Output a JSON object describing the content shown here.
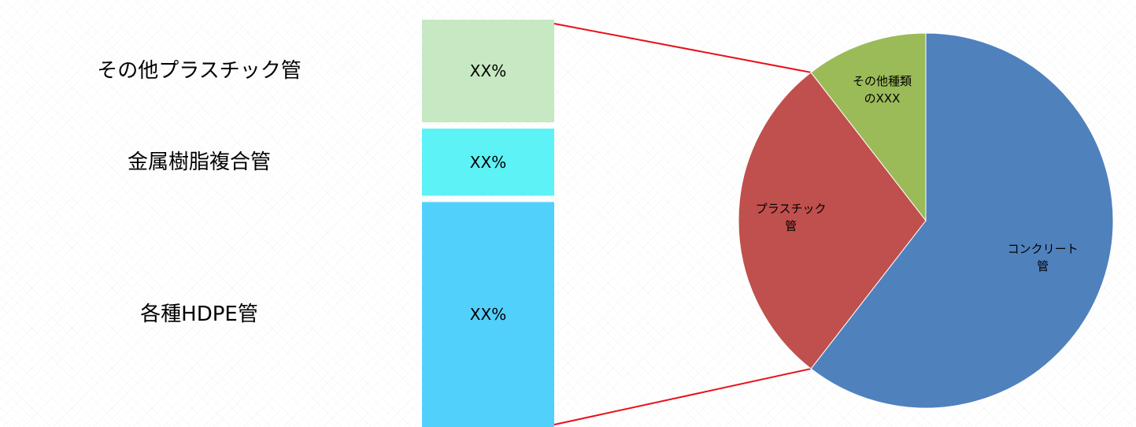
{
  "chart_data": [
    {
      "type": "bar",
      "stacked": true,
      "categories": [
        "その他プラスチック管",
        "金属樹脂複合管",
        "各種HDPE管"
      ],
      "value_labels": [
        "XX%",
        "XX%",
        "XX%"
      ],
      "values": [
        26,
        17,
        57
      ],
      "colors": [
        "#C6E8C2",
        "#5CF2F6",
        "#52D0FC"
      ]
    },
    {
      "type": "pie",
      "labels": [
        "コンクリート管",
        "プラスチック管",
        "その他種類のXXX"
      ],
      "values": [
        60.5,
        29,
        10.5
      ],
      "colors": [
        "#4F81BD",
        "#C0504D",
        "#9BBB59"
      ]
    }
  ],
  "connector_color": "#E8101A"
}
